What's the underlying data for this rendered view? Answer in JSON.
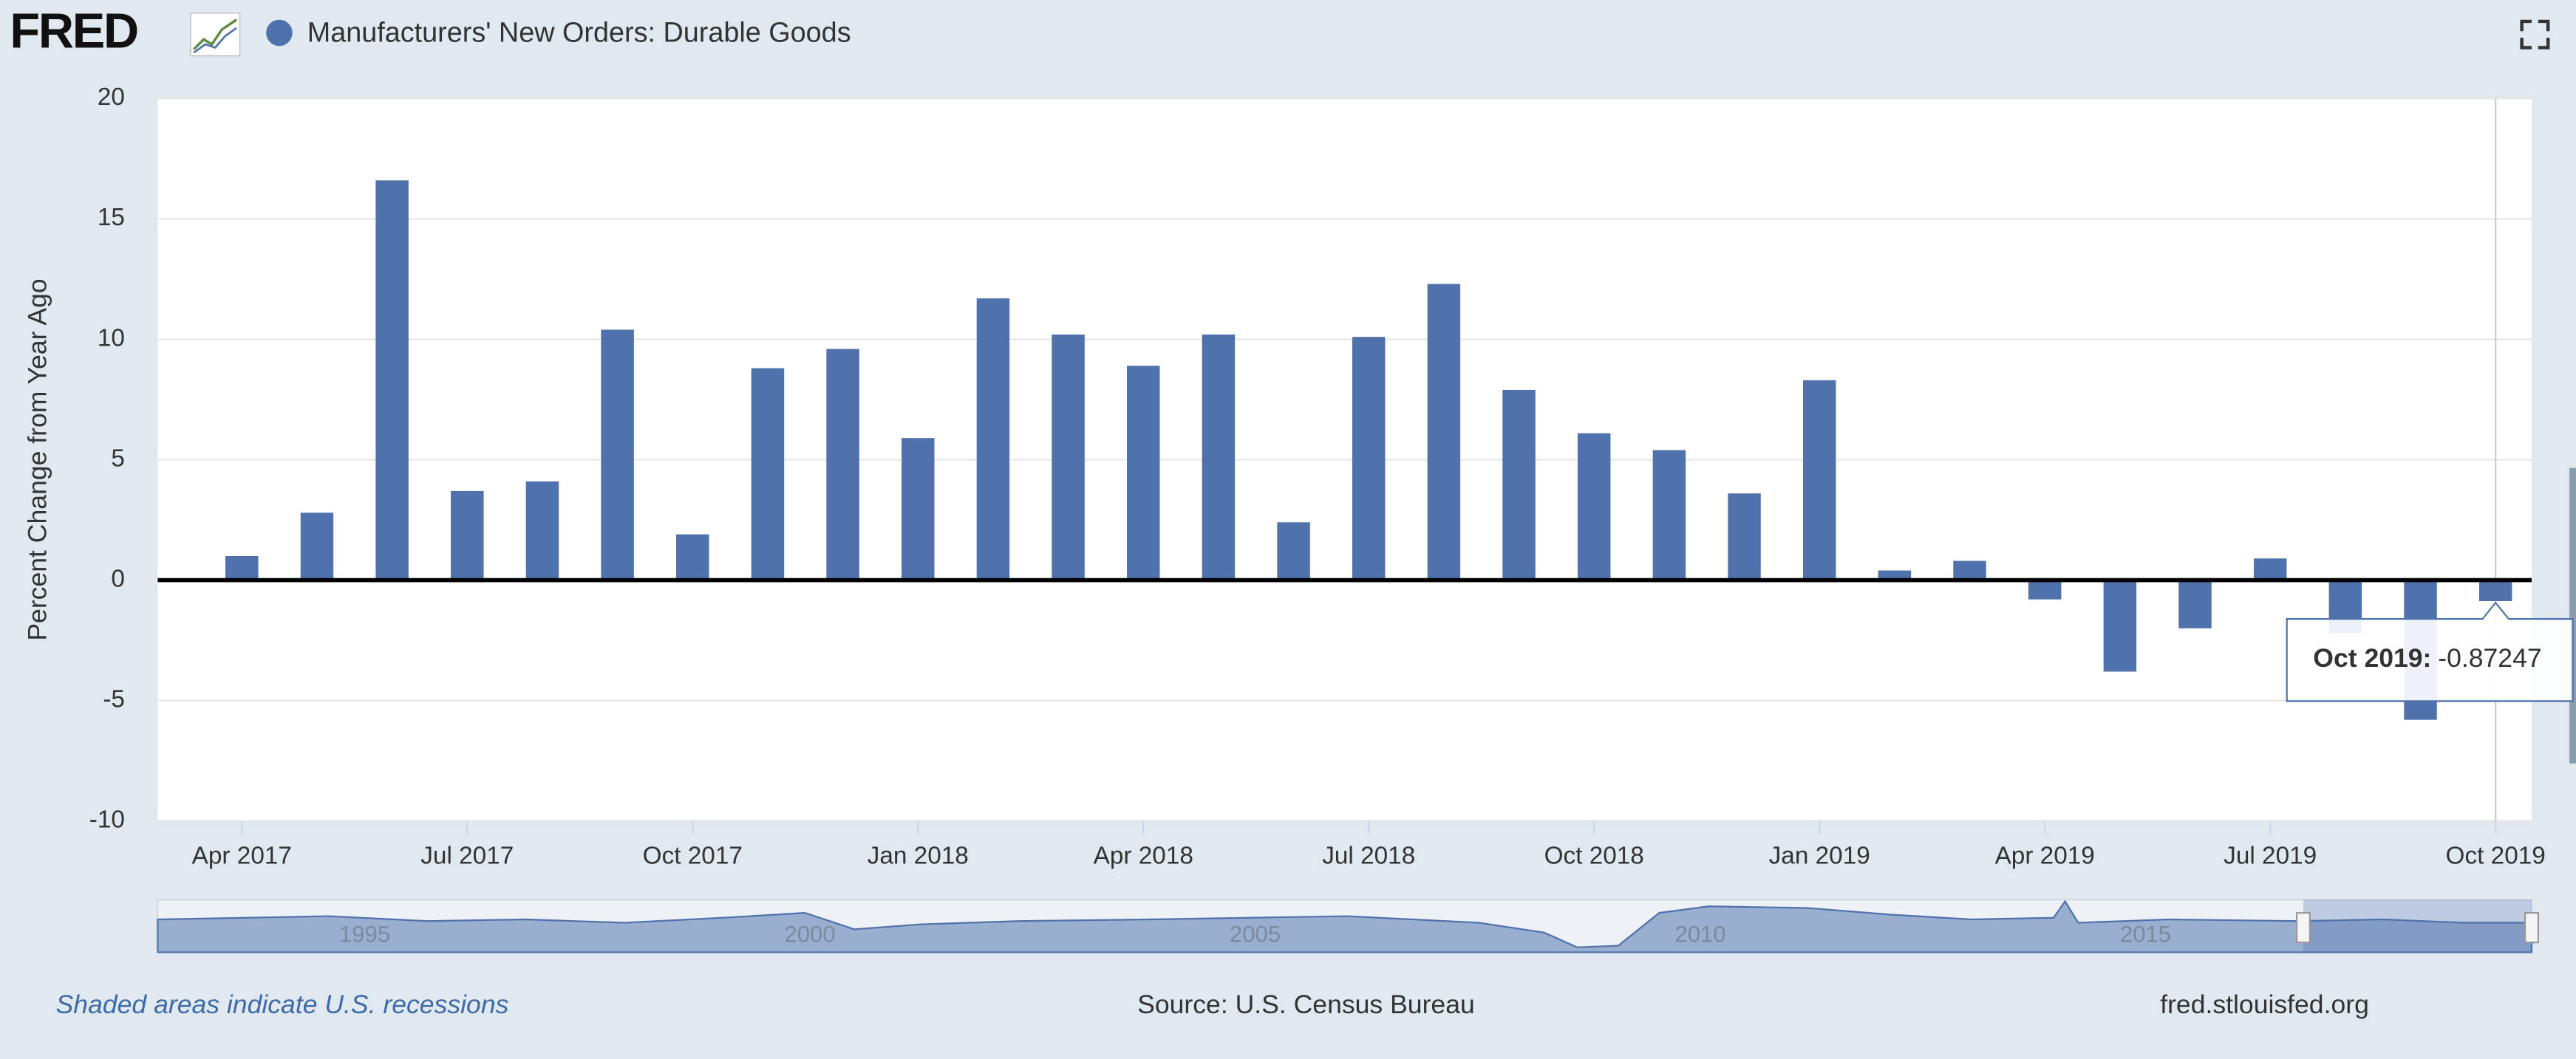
{
  "logo": "FRED",
  "footer": {
    "recessions": "Shaded areas indicate U.S. recessions",
    "source": "Source: U.S. Census Bureau",
    "site": "fred.stlouisfed.org"
  },
  "navigator": {
    "labels": [
      "1995",
      "2000",
      "2005",
      "2010",
      "2015"
    ]
  },
  "tooltip": {
    "label": "Oct 2019:"
  },
  "chart_data": {
    "type": "bar",
    "title": "Manufacturers' New Orders: Durable Goods",
    "y_label": "Percent Change from Year Ago",
    "categories": [
      "Apr 2017",
      null,
      null,
      "Jul 2017",
      null,
      null,
      "Oct 2017",
      null,
      null,
      "Jan 2018",
      null,
      null,
      "Apr 2018",
      null,
      null,
      "Jul 2018",
      null,
      null,
      "Oct 2018",
      null,
      null,
      "Jan 2019",
      null,
      null,
      "Apr 2019",
      null,
      null,
      "Jul 2019",
      null,
      null,
      "Oct 2019"
    ],
    "values": [
      1.0,
      2.8,
      16.6,
      3.7,
      4.1,
      10.4,
      1.9,
      8.8,
      9.6,
      5.9,
      11.7,
      10.2,
      8.9,
      10.2,
      2.4,
      10.1,
      12.3,
      7.9,
      6.1,
      5.4,
      3.6,
      8.3,
      0.4,
      0.8,
      -0.8,
      -3.8,
      -2.0,
      0.9,
      -2.2,
      -5.8,
      -0.87247
    ],
    "color": "#4f72ac",
    "ylim": [
      -10,
      20
    ],
    "yticks": [
      -10,
      -5,
      0,
      5,
      10,
      15,
      20
    ],
    "grid": true
  }
}
